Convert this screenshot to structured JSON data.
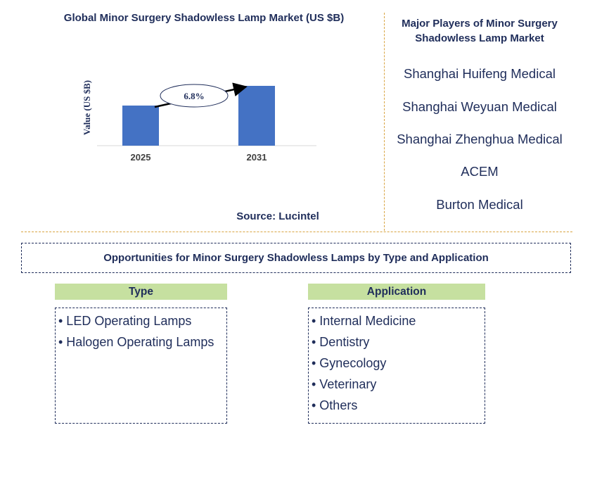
{
  "chart_data": {
    "type": "bar",
    "title": "Global Minor Surgery Shadowless Lamp Market (US $B)",
    "ylabel": "Value (US $B)",
    "categories": [
      "2025",
      "2031"
    ],
    "values": [
      0.57,
      0.85
    ],
    "annotation": "6.8%",
    "bar_color": "#4472c4",
    "grid": false
  },
  "source": "Source: Lucintel",
  "players": {
    "title_line1": "Major Players of Minor Surgery",
    "title_line2": "Shadowless Lamp Market",
    "items": [
      "Shanghai Huifeng Medical",
      "Shanghai Weyuan Medical",
      "Shanghai Zhenghua Medical",
      "ACEM",
      "Burton Medical"
    ]
  },
  "opportunities": {
    "title": "Opportunities for Minor Surgery Shadowless Lamps by Type and Application",
    "type": {
      "header": "Type",
      "items": [
        "• LED Operating Lamps",
        "• Halogen Operating Lamps"
      ]
    },
    "application": {
      "header": "Application",
      "items": [
        "• Internal Medicine",
        "• Dentistry",
        "• Gynecology",
        "• Veterinary",
        "• Others"
      ]
    }
  },
  "colors": {
    "text": "#1f2d5a",
    "bar": "#4472c4",
    "segment_header": "#c6e0a0",
    "divider": "#d9a441"
  }
}
